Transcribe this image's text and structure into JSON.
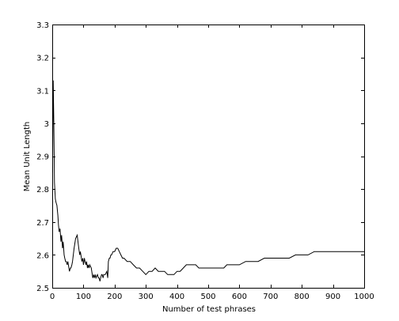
{
  "chart_data": {
    "type": "line",
    "title": "",
    "xlabel": "Number of test phrases",
    "ylabel": "Mean Unit Length",
    "xlim": [
      0,
      1000
    ],
    "ylim": [
      2.5,
      3.3
    ],
    "grid": false,
    "xticks": [
      0,
      100,
      200,
      300,
      400,
      500,
      600,
      700,
      800,
      900,
      1000
    ],
    "yticks": [
      2.5,
      2.6,
      2.7,
      2.8,
      2.9,
      3.0,
      3.1,
      3.2,
      3.3
    ],
    "xtick_labels": [
      "0",
      "100",
      "200",
      "300",
      "400",
      "500",
      "600",
      "700",
      "800",
      "900",
      "1000"
    ],
    "ytick_labels": [
      "2.5",
      "2.6",
      "2.7",
      "2.8",
      "2.9",
      "3",
      "3.1",
      "3.2",
      "3.3"
    ],
    "series": [
      {
        "color": "#000000",
        "x": [
          1,
          3,
          5,
          7,
          10,
          12,
          15,
          18,
          20,
          22,
          25,
          28,
          30,
          33,
          35,
          38,
          40,
          43,
          45,
          48,
          50,
          55,
          58,
          60,
          63,
          65,
          70,
          75,
          80,
          85,
          88,
          90,
          92,
          95,
          98,
          100,
          103,
          105,
          108,
          110,
          113,
          115,
          118,
          120,
          125,
          130,
          133,
          135,
          138,
          140,
          145,
          148,
          150,
          153,
          155,
          158,
          160,
          163,
          165,
          168,
          170,
          175,
          178,
          180,
          183,
          185,
          188,
          190,
          195,
          200,
          205,
          210,
          215,
          220,
          225,
          230,
          240,
          250,
          260,
          270,
          280,
          290,
          300,
          310,
          320,
          330,
          340,
          350,
          360,
          370,
          380,
          390,
          400,
          410,
          420,
          430,
          440,
          450,
          460,
          470,
          480,
          490,
          500,
          510,
          520,
          530,
          540,
          550,
          560,
          570,
          580,
          590,
          600,
          620,
          640,
          660,
          680,
          700,
          720,
          740,
          760,
          780,
          800,
          820,
          840,
          860,
          880,
          900,
          920,
          940,
          960,
          980,
          1000
        ],
        "y": [
          2.85,
          3.13,
          3.0,
          2.82,
          2.77,
          2.76,
          2.75,
          2.72,
          2.69,
          2.67,
          2.68,
          2.64,
          2.66,
          2.62,
          2.64,
          2.6,
          2.59,
          2.58,
          2.58,
          2.57,
          2.58,
          2.55,
          2.56,
          2.56,
          2.57,
          2.58,
          2.62,
          2.65,
          2.66,
          2.62,
          2.6,
          2.61,
          2.6,
          2.58,
          2.59,
          2.57,
          2.59,
          2.58,
          2.57,
          2.58,
          2.56,
          2.57,
          2.56,
          2.57,
          2.56,
          2.53,
          2.54,
          2.53,
          2.54,
          2.53,
          2.54,
          2.53,
          2.53,
          2.52,
          2.53,
          2.54,
          2.54,
          2.53,
          2.54,
          2.54,
          2.54,
          2.55,
          2.53,
          2.58,
          2.59,
          2.59,
          2.6,
          2.6,
          2.61,
          2.61,
          2.62,
          2.62,
          2.61,
          2.6,
          2.59,
          2.59,
          2.58,
          2.58,
          2.57,
          2.56,
          2.56,
          2.55,
          2.54,
          2.55,
          2.55,
          2.56,
          2.55,
          2.55,
          2.55,
          2.54,
          2.54,
          2.54,
          2.55,
          2.55,
          2.56,
          2.57,
          2.57,
          2.57,
          2.57,
          2.56,
          2.56,
          2.56,
          2.56,
          2.56,
          2.56,
          2.56,
          2.56,
          2.56,
          2.57,
          2.57,
          2.57,
          2.57,
          2.57,
          2.58,
          2.58,
          2.58,
          2.59,
          2.59,
          2.59,
          2.59,
          2.59,
          2.6,
          2.6,
          2.6,
          2.61,
          2.61,
          2.61,
          2.61,
          2.61,
          2.61,
          2.61,
          2.61,
          2.61
        ]
      }
    ]
  }
}
